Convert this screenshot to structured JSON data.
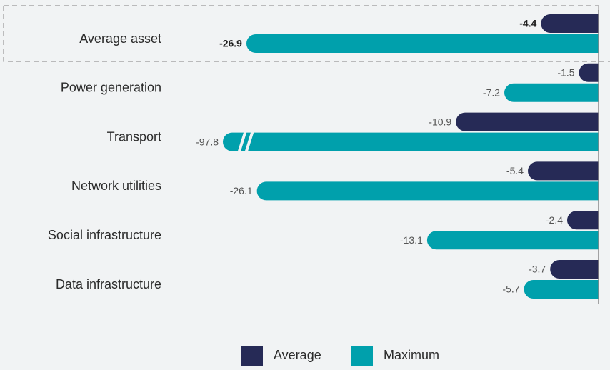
{
  "chart_data": {
    "type": "hbar",
    "categories": [
      "Average asset",
      "Power generation",
      "Transport",
      "Network utilities",
      "Social infrastructure",
      "Data infrastructure"
    ],
    "series": [
      {
        "name": "Average",
        "color": "#262a56",
        "values": [
          -4.4,
          -1.5,
          -10.9,
          -5.4,
          -2.4,
          -3.7
        ]
      },
      {
        "name": "Maximum",
        "color": "#00a0ac",
        "values": [
          -26.9,
          -7.2,
          -97.8,
          -26.1,
          -13.1,
          -5.7
        ]
      }
    ],
    "xlim": [
      -28.7,
      0
    ],
    "axis_break": true
  }
}
